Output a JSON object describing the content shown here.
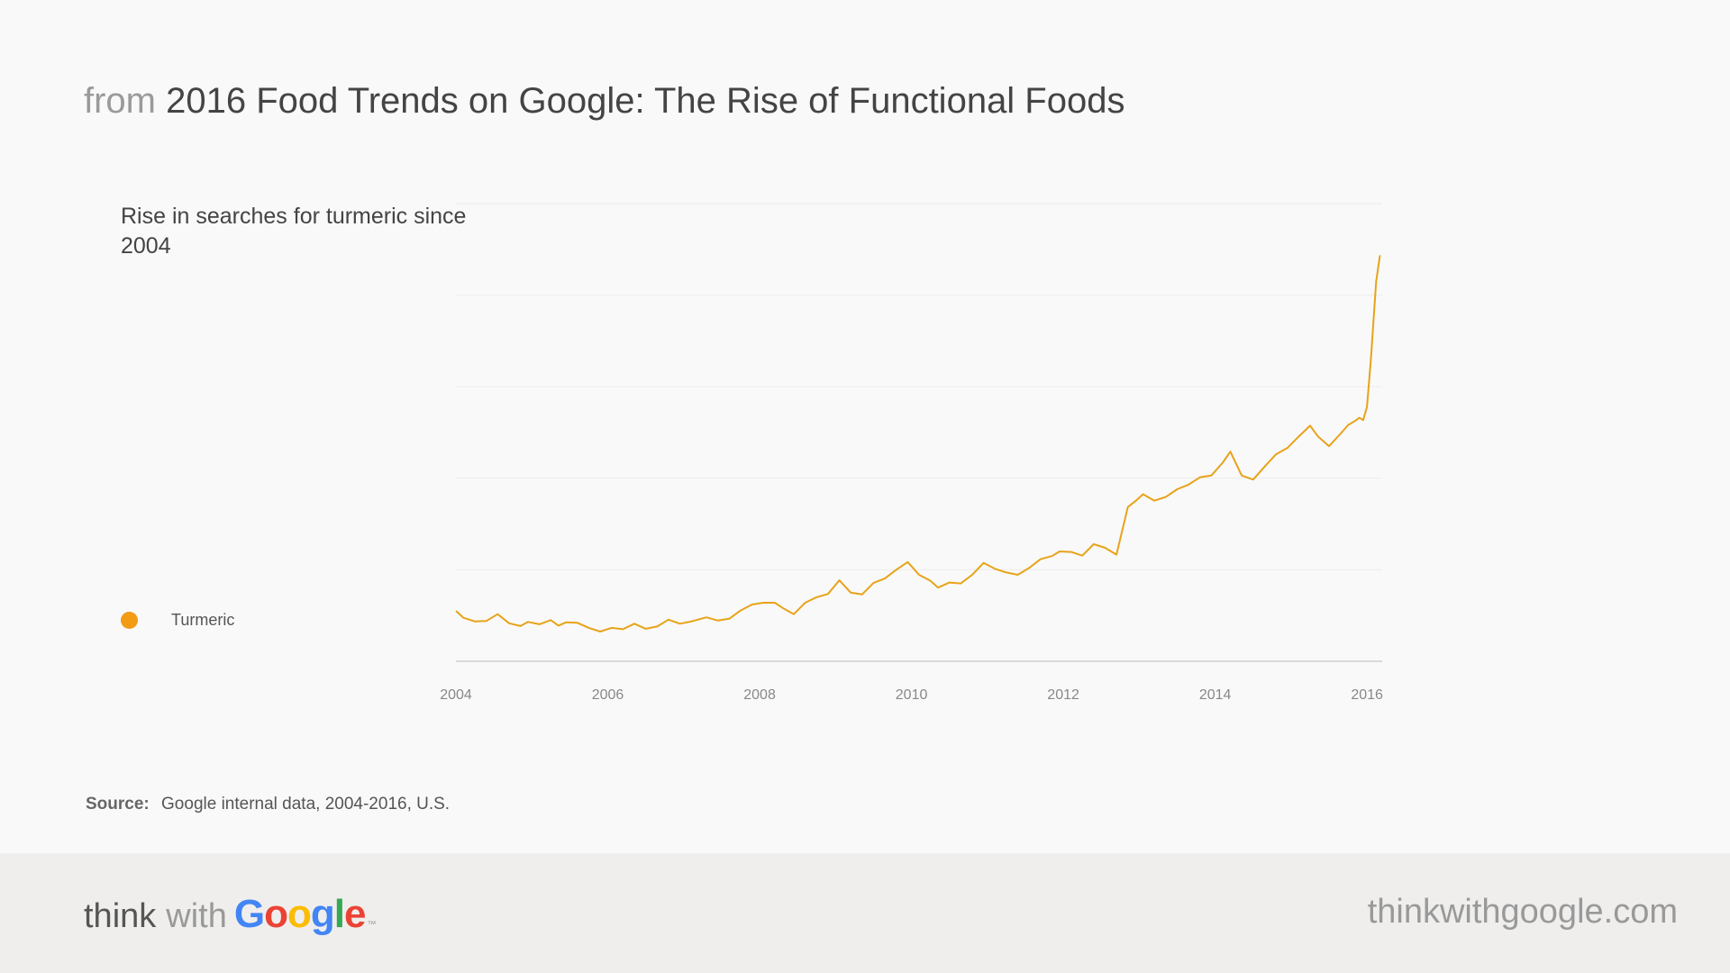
{
  "header": {
    "prefix": "from",
    "title": "2016 Food Trends on Google: The Rise of Functional Foods"
  },
  "chart_title": "Rise in searches for turmeric since 2004",
  "legend": {
    "label": "Turmeric",
    "color": "#f29b14"
  },
  "source": {
    "label": "Source:",
    "text": "Google internal data, 2004-2016, U.S."
  },
  "footer": {
    "brand_think": "think",
    "brand_with": "with",
    "brand_google": [
      "G",
      "o",
      "o",
      "g",
      "l",
      "e"
    ],
    "brand_tm": "™",
    "site": "thinkwithgoogle.com"
  },
  "chart_data": {
    "type": "line",
    "title": "Rise in searches for turmeric since 2004",
    "xlabel": "",
    "ylabel": "",
    "x_ticks": [
      "2004",
      "2006",
      "2008",
      "2010",
      "2012",
      "2014",
      "2016"
    ],
    "xlim": [
      2004,
      2016.2
    ],
    "ylim": [
      0,
      100
    ],
    "grid": true,
    "legend_position": "left",
    "series": [
      {
        "name": "Turmeric",
        "color": "#e8a319",
        "x": [
          2004.0,
          2004.1,
          2004.25,
          2004.4,
          2004.55,
          2004.7,
          2004.85,
          2004.95,
          2005.1,
          2005.25,
          2005.35,
          2005.45,
          2005.6,
          2005.75,
          2005.9,
          2006.05,
          2006.2,
          2006.35,
          2006.5,
          2006.65,
          2006.8,
          2006.95,
          2007.1,
          2007.3,
          2007.45,
          2007.6,
          2007.75,
          2007.9,
          2008.05,
          2008.2,
          2008.3,
          2008.45,
          2008.6,
          2008.75,
          2008.9,
          2009.05,
          2009.2,
          2009.35,
          2009.5,
          2009.65,
          2009.8,
          2009.95,
          2010.1,
          2010.25,
          2010.35,
          2010.5,
          2010.65,
          2010.8,
          2010.95,
          2011.1,
          2011.25,
          2011.4,
          2011.55,
          2011.7,
          2011.85,
          2011.95,
          2012.1,
          2012.25,
          2012.4,
          2012.55,
          2012.7,
          2012.85,
          2012.95,
          2013.05,
          2013.2,
          2013.35,
          2013.5,
          2013.65,
          2013.8,
          2013.95,
          2014.1,
          2014.2,
          2014.35,
          2014.5,
          2014.65,
          2014.8,
          2014.95,
          2015.1,
          2015.25,
          2015.35,
          2015.5,
          2015.65,
          2015.75,
          2015.85,
          2015.9,
          2015.95,
          2016.0,
          2016.05,
          2016.12,
          2016.17
        ],
        "values": [
          11.0,
          9.5,
          8.7,
          8.8,
          10.3,
          8.3,
          7.7,
          8.6,
          8.1,
          9.0,
          7.8,
          8.5,
          8.4,
          7.3,
          6.5,
          7.3,
          7.0,
          8.2,
          7.1,
          7.6,
          9.1,
          8.2,
          8.7,
          9.6,
          8.9,
          9.3,
          11.1,
          12.4,
          12.8,
          12.8,
          11.7,
          10.3,
          12.8,
          14.0,
          14.7,
          17.7,
          15.0,
          14.6,
          17.1,
          18.1,
          20.0,
          21.7,
          18.9,
          17.6,
          16.1,
          17.2,
          17.0,
          18.9,
          21.5,
          20.2,
          19.4,
          18.9,
          20.4,
          22.3,
          23.0,
          24.0,
          23.9,
          23.1,
          25.6,
          24.8,
          23.3,
          33.7,
          35.0,
          36.5,
          35.1,
          35.9,
          37.6,
          38.6,
          40.2,
          40.6,
          43.4,
          45.8,
          40.6,
          39.7,
          42.5,
          45.2,
          46.6,
          49.1,
          51.5,
          49.2,
          47.0,
          49.7,
          51.6,
          52.6,
          53.2,
          52.7,
          55.6,
          65.8,
          83.0,
          88.7
        ]
      }
    ]
  }
}
